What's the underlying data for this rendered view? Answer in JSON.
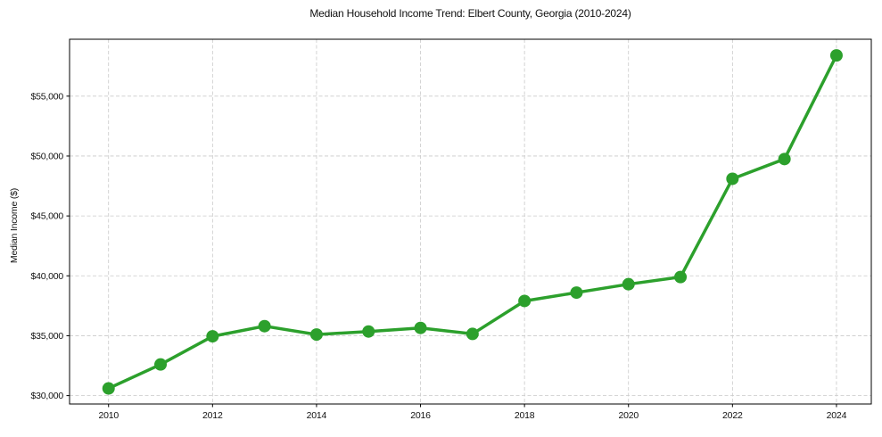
{
  "page": {
    "background_color": "#ffffff"
  },
  "chart_data": {
    "type": "line",
    "title": "Median Household Income Trend: Elbert County, Georgia (2010-2024)",
    "xlabel": "",
    "ylabel": "Median Income ($)",
    "x": [
      2010,
      2011,
      2012,
      2013,
      2014,
      2015,
      2016,
      2017,
      2018,
      2019,
      2020,
      2021,
      2022,
      2023,
      2024
    ],
    "values": [
      30600,
      32600,
      34950,
      35800,
      35100,
      35350,
      35650,
      35150,
      37900,
      38600,
      39300,
      39900,
      48100,
      49750,
      58400
    ],
    "series_name": "Median Household Income",
    "x_ticks": [
      2010,
      2012,
      2014,
      2016,
      2018,
      2020,
      2022,
      2024
    ],
    "x_tick_labels": [
      "2010",
      "2012",
      "2014",
      "2016",
      "2018",
      "2020",
      "2022",
      "2024"
    ],
    "y_ticks": [
      30000,
      35000,
      40000,
      45000,
      50000,
      55000
    ],
    "y_tick_labels": [
      "$30,000",
      "$35,000",
      "$40,000",
      "$45,000",
      "$50,000",
      "$55,000"
    ],
    "xlim": [
      2009.25,
      2024.67
    ],
    "ylim": [
      29300,
      59750
    ],
    "grid": true,
    "grid_style": "dashed",
    "legend": "none",
    "line_color": "#2ca02c",
    "marker": "circle",
    "marker_color": "#2ca02c",
    "grid_color": "#c9c9c9",
    "frame_color": "#000000",
    "text_color": "#111111"
  }
}
